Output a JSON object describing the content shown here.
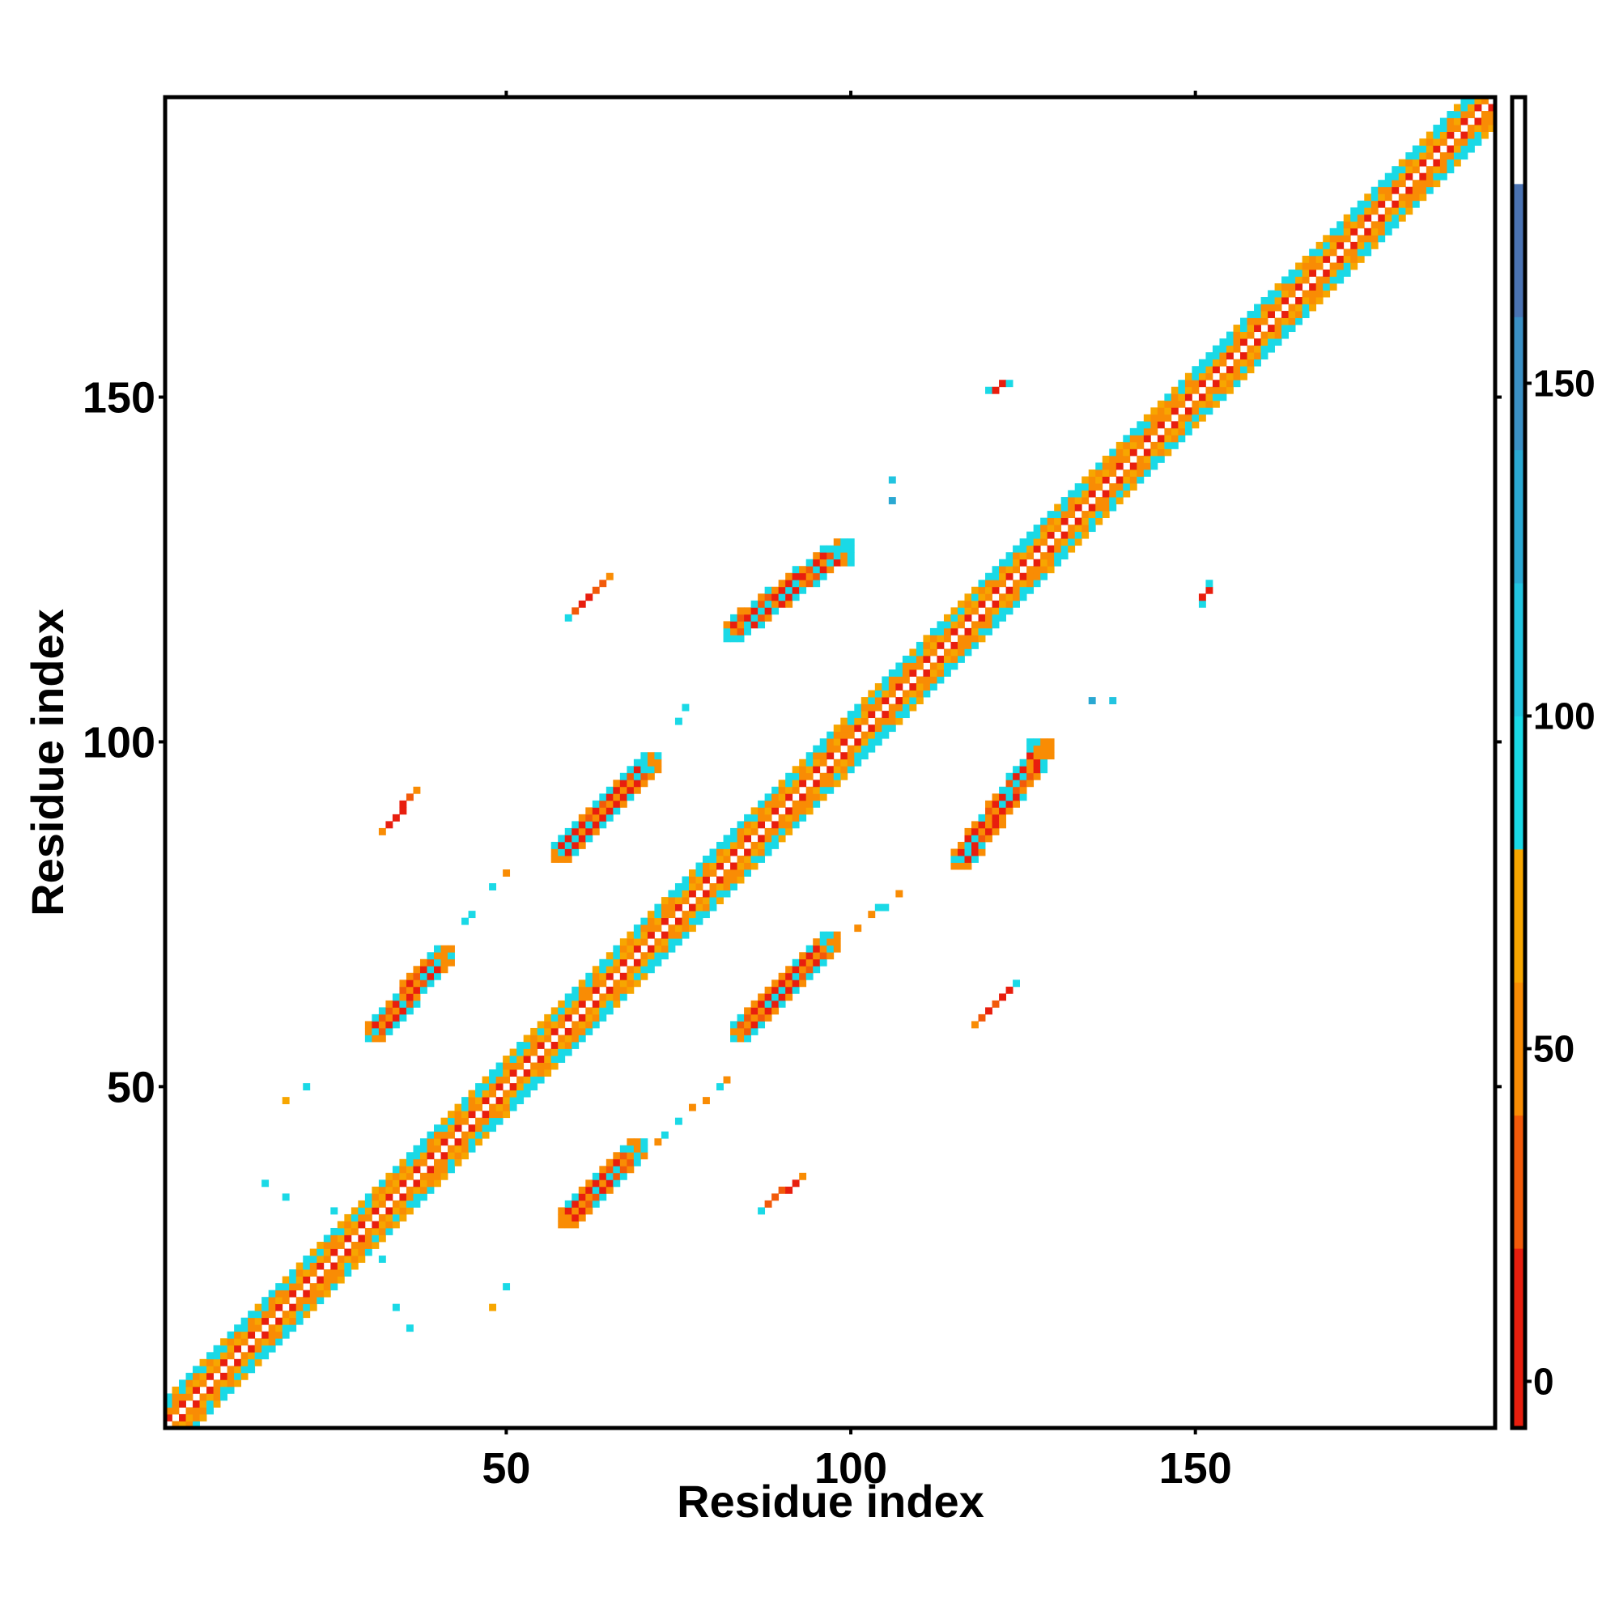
{
  "chart_data": {
    "type": "heatmap",
    "title": "",
    "xlabel": "Residue index",
    "ylabel": "Residue index",
    "xlim": [
      1,
      193
    ],
    "ylim": [
      1,
      193
    ],
    "x_ticks": [
      50,
      100,
      150
    ],
    "x_tick_labels": [
      "50",
      "100",
      "150"
    ],
    "y_ticks": [
      50,
      100,
      150
    ],
    "y_tick_labels": [
      "50",
      "100",
      "150"
    ],
    "grid": false,
    "colorbar": {
      "ticks": [
        0,
        50,
        100,
        150
      ],
      "tick_labels": [
        "0",
        "50",
        "100",
        "150"
      ],
      "range": [
        -7,
        193
      ],
      "bands": [
        {
          "from": -7,
          "to": 20,
          "color": "#e81e0e"
        },
        {
          "from": 20,
          "to": 40,
          "color": "#f25a0a"
        },
        {
          "from": 40,
          "to": 60,
          "color": "#f98c04"
        },
        {
          "from": 60,
          "to": 80,
          "color": "#f7a600"
        },
        {
          "from": 80,
          "to": 100,
          "color": "#1ad9e6"
        },
        {
          "from": 100,
          "to": 120,
          "color": "#22c4e0"
        },
        {
          "from": 120,
          "to": 140,
          "color": "#2aa8d2"
        },
        {
          "from": 140,
          "to": 160,
          "color": "#3a8fc4"
        },
        {
          "from": 160,
          "to": 180,
          "color": "#4a72b2"
        },
        {
          "from": 180,
          "to": 193,
          "color": "#ffffff"
        }
      ]
    },
    "diagonal_band": {
      "from": 1,
      "to": 193,
      "half_width": 4
    },
    "contact_segments": [
      {
        "x1": 31,
        "y1": 58,
        "x2": 41,
        "y2": 69,
        "width": 3,
        "category": "red"
      },
      {
        "x1": 59,
        "y1": 31,
        "x2": 69,
        "y2": 41,
        "width": 3,
        "category": "red"
      },
      {
        "x1": 58,
        "y1": 84,
        "x2": 71,
        "y2": 97,
        "width": 3,
        "category": "red"
      },
      {
        "x1": 84,
        "y1": 58,
        "x2": 97,
        "y2": 71,
        "width": 3,
        "category": "red"
      },
      {
        "x1": 83,
        "y1": 116,
        "x2": 99,
        "y2": 128,
        "width": 3,
        "category": "red"
      },
      {
        "x1": 116,
        "y1": 83,
        "x2": 128,
        "y2": 99,
        "width": 3,
        "category": "red"
      },
      {
        "x1": 32,
        "y1": 87,
        "x2": 37,
        "y2": 93,
        "width": 1,
        "category": "red"
      },
      {
        "x1": 87,
        "y1": 32,
        "x2": 93,
        "y2": 37,
        "width": 1,
        "category": "red"
      },
      {
        "x1": 59,
        "y1": 118,
        "x2": 65,
        "y2": 124,
        "width": 1,
        "category": "red"
      },
      {
        "x1": 118,
        "y1": 59,
        "x2": 124,
        "y2": 65,
        "width": 1,
        "category": "red"
      },
      {
        "x1": 120,
        "y1": 151,
        "x2": 123,
        "y2": 152,
        "width": 1,
        "category": "red"
      },
      {
        "x1": 151,
        "y1": 120,
        "x2": 152,
        "y2": 123,
        "width": 1,
        "category": "red"
      },
      {
        "x1": 42,
        "y1": 72,
        "x2": 51,
        "y2": 82,
        "width": 1,
        "category": "cyan"
      },
      {
        "x1": 72,
        "y1": 42,
        "x2": 82,
        "y2": 51,
        "width": 1,
        "category": "cyan"
      },
      {
        "x1": 71,
        "y1": 98,
        "x2": 78,
        "y2": 107,
        "width": 1,
        "category": "cyan"
      },
      {
        "x1": 98,
        "y1": 71,
        "x2": 107,
        "y2": 78,
        "width": 1,
        "category": "cyan"
      }
    ],
    "scatter_points": [
      {
        "x": 18,
        "y": 48,
        "v": 60
      },
      {
        "x": 48,
        "y": 18,
        "v": 60
      },
      {
        "x": 21,
        "y": 50,
        "v": 90
      },
      {
        "x": 50,
        "y": 21,
        "v": 90
      },
      {
        "x": 106,
        "y": 138,
        "v": 100
      },
      {
        "x": 138,
        "y": 106,
        "v": 100
      },
      {
        "x": 106,
        "y": 135,
        "v": 130
      },
      {
        "x": 135,
        "y": 106,
        "v": 130
      },
      {
        "x": 100,
        "y": 126,
        "v": 90
      },
      {
        "x": 126,
        "y": 100,
        "v": 90
      },
      {
        "x": 18,
        "y": 34,
        "v": 90
      },
      {
        "x": 34,
        "y": 18,
        "v": 90
      },
      {
        "x": 25,
        "y": 32,
        "v": 90
      },
      {
        "x": 32,
        "y": 25,
        "v": 90
      },
      {
        "x": 15,
        "y": 36,
        "v": 90
      },
      {
        "x": 36,
        "y": 15,
        "v": 90
      }
    ]
  }
}
